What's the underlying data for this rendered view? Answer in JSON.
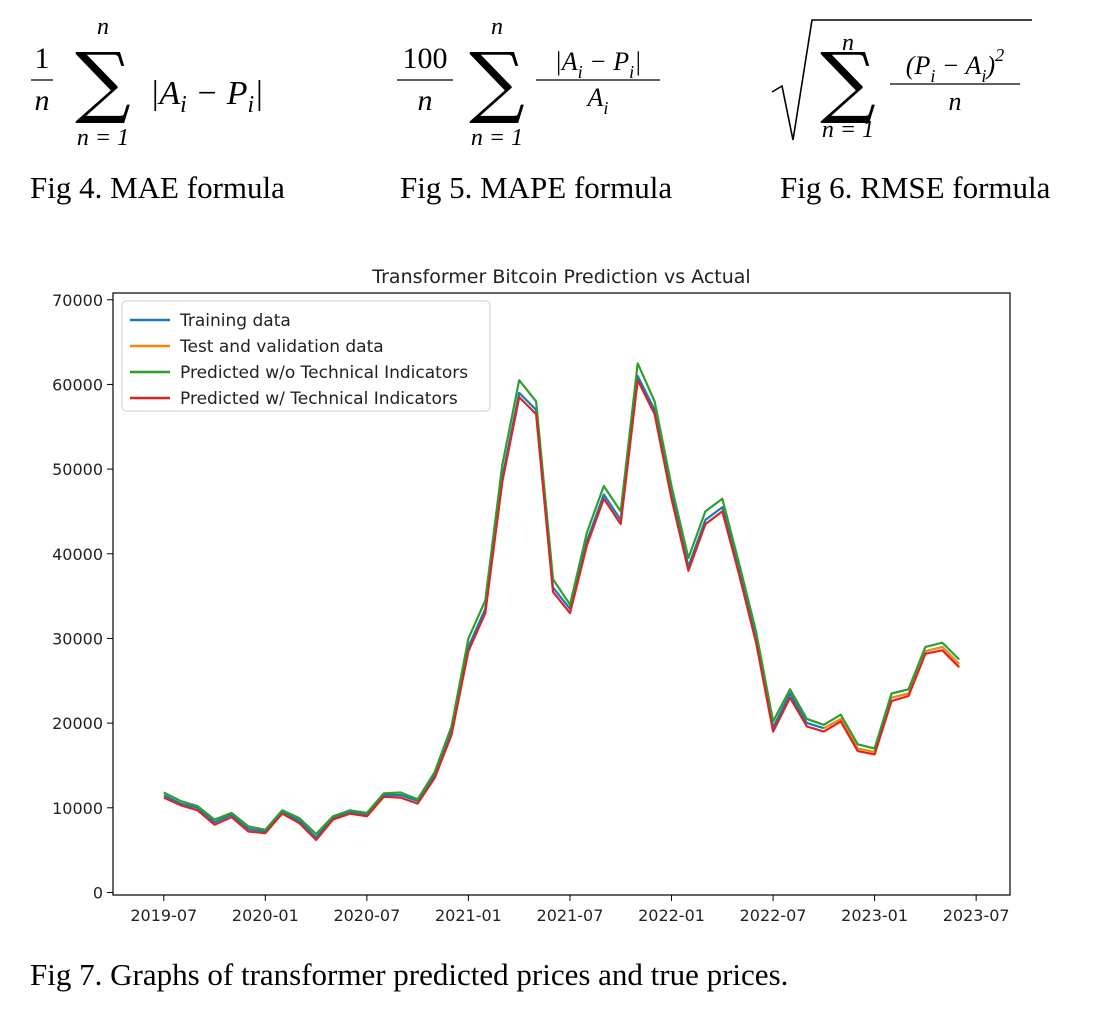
{
  "formulas": [
    {
      "scale_numerator": "1",
      "scale_denominator": "n",
      "sum_symbol": "∑",
      "sum_upper": "n",
      "sum_lower": "n = 1",
      "term": [
        {
          "text": "|A"
        },
        {
          "sub": "i"
        },
        {
          "text": " − P"
        },
        {
          "sub": "i"
        },
        {
          "text": "|"
        }
      ]
    },
    {
      "scale_numerator": "100",
      "scale_denominator": "n",
      "sum_symbol": "∑",
      "sum_upper": "n",
      "sum_lower": "n = 1",
      "term_numerator": [
        {
          "text": "|A"
        },
        {
          "sub": "i"
        },
        {
          "text": " − P"
        },
        {
          "sub": "i"
        },
        {
          "text": "|"
        }
      ],
      "term_denominator": [
        {
          "text": "A"
        },
        {
          "sub": "i"
        }
      ]
    },
    {
      "radical": true,
      "sum_symbol": "∑",
      "sum_upper": "n",
      "sum_lower": "n = 1",
      "term_numerator": [
        {
          "text": "(P"
        },
        {
          "sub": "i"
        },
        {
          "text": " − A"
        },
        {
          "sub": "i"
        },
        {
          "text": ")"
        },
        {
          "sup": "2"
        }
      ],
      "term_denominator": [
        {
          "text": "n"
        }
      ]
    }
  ],
  "figure_captions": [
    "Fig 4. MAE formula",
    "Fig 5. MAPE formula",
    "Fig 6. RMSE formula"
  ],
  "chart_data": {
    "type": "line",
    "title": "Transformer Bitcoin Prediction vs Actual",
    "x": [
      "2019-07",
      "2019-08",
      "2019-09",
      "2019-10",
      "2019-11",
      "2019-12",
      "2020-01",
      "2020-02",
      "2020-03",
      "2020-04",
      "2020-05",
      "2020-06",
      "2020-07",
      "2020-08",
      "2020-09",
      "2020-10",
      "2020-11",
      "2020-12",
      "2021-01",
      "2021-02",
      "2021-03",
      "2021-04",
      "2021-05",
      "2021-06",
      "2021-07",
      "2021-08",
      "2021-09",
      "2021-10",
      "2021-11",
      "2021-12",
      "2022-01",
      "2022-02",
      "2022-03",
      "2022-04",
      "2022-05",
      "2022-06",
      "2022-07",
      "2022-08",
      "2022-09",
      "2022-10",
      "2022-11",
      "2022-12",
      "2023-01",
      "2023-02",
      "2023-03",
      "2023-04",
      "2023-05",
      "2023-06"
    ],
    "series": [
      {
        "name": "Training data",
        "color": "#1f77b4",
        "values": [
          11500,
          10500,
          10000,
          8300,
          9200,
          7500,
          7200,
          9500,
          8500,
          6500,
          8800,
          9500,
          9200,
          11500,
          11500,
          10800,
          13800,
          19000,
          29000,
          33500,
          49000,
          59000,
          57000,
          36000,
          33500,
          41500,
          47000,
          44000,
          61000,
          57000,
          47000,
          38500,
          44000,
          45500,
          38000,
          30000,
          19500,
          23500,
          20000,
          19400,
          null,
          null,
          null,
          null,
          null,
          null,
          null,
          null
        ]
      },
      {
        "name": "Test and validation data",
        "color": "#ff7f0e",
        "values": [
          null,
          null,
          null,
          null,
          null,
          null,
          null,
          null,
          null,
          null,
          null,
          null,
          null,
          null,
          null,
          null,
          null,
          null,
          null,
          null,
          null,
          null,
          null,
          null,
          null,
          null,
          null,
          null,
          null,
          null,
          null,
          null,
          null,
          null,
          null,
          null,
          null,
          null,
          null,
          19400,
          20500,
          17000,
          16600,
          23000,
          23500,
          28500,
          29000,
          27000
        ]
      },
      {
        "name": "Predicted w/o Technical Indicators",
        "color": "#2ca02c",
        "values": [
          11800,
          10800,
          10200,
          8600,
          9400,
          7800,
          7400,
          9700,
          8800,
          6900,
          9000,
          9700,
          9400,
          11700,
          11800,
          11000,
          14200,
          19600,
          30000,
          34500,
          50500,
          60500,
          58000,
          37000,
          34000,
          42500,
          48000,
          45000,
          62500,
          58000,
          48000,
          39500,
          45000,
          46500,
          38800,
          30800,
          20200,
          24000,
          20500,
          19800,
          21000,
          17500,
          17000,
          23500,
          24000,
          29000,
          29500,
          27500
        ]
      },
      {
        "name": "Predicted w/ Technical Indicators",
        "color": "#d62728",
        "values": [
          11200,
          10300,
          9700,
          8000,
          8900,
          7200,
          7000,
          9300,
          8200,
          6200,
          8600,
          9300,
          9000,
          11300,
          11200,
          10500,
          13500,
          18600,
          28500,
          33000,
          48500,
          58500,
          56500,
          35500,
          33000,
          41000,
          46500,
          43500,
          60500,
          56500,
          46500,
          38000,
          43500,
          45000,
          37500,
          29500,
          19000,
          23000,
          19600,
          19000,
          20200,
          16700,
          16300,
          22600,
          23200,
          28200,
          28600,
          26600
        ]
      }
    ],
    "xlim": [
      "2019-04",
      "2023-09"
    ],
    "xticks": [
      "2019-07",
      "2020-01",
      "2020-07",
      "2021-01",
      "2021-07",
      "2022-01",
      "2022-07",
      "2023-01",
      "2023-07"
    ],
    "ylim": [
      -300,
      70800
    ],
    "yticks": [
      0,
      10000,
      20000,
      30000,
      40000,
      50000,
      60000,
      70000
    ],
    "legend": "upper left",
    "grid": false
  },
  "chart_caption": "Fig 7. Graphs of transformer predicted prices and true prices."
}
